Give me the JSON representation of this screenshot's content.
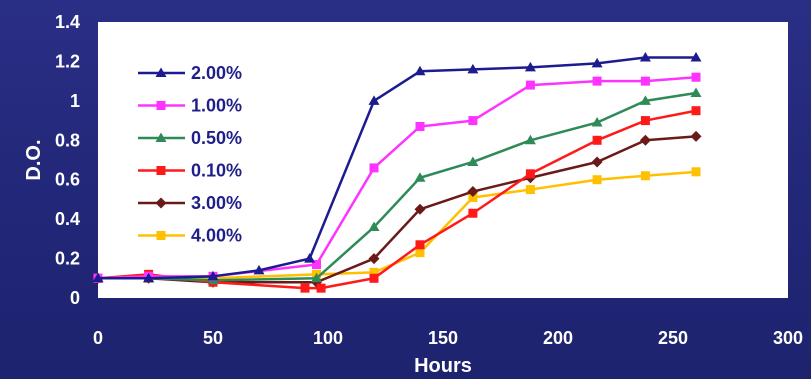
{
  "chart_data": {
    "type": "line",
    "xlabel": "Hours",
    "ylabel": "D.O.",
    "xlim": [
      0,
      300
    ],
    "ylim": [
      0,
      1.4
    ],
    "xticks": [
      0,
      50,
      100,
      150,
      200,
      250,
      300
    ],
    "yticks": [
      0,
      0.2,
      0.4,
      0.6,
      0.8,
      1,
      1.2,
      1.4
    ],
    "xtick_labels": [
      "0",
      "50",
      "100",
      "150",
      "200",
      "250",
      "300"
    ],
    "ytick_labels": [
      "0",
      "0.2",
      "0.4",
      "0.6",
      "0.8",
      "1",
      "1.2",
      "1.4"
    ],
    "grid": false,
    "legend_position": "top-left inside plot",
    "series": [
      {
        "name": "2.00%",
        "color": "#1c1c8f",
        "marker": "triangle",
        "x": [
          0,
          22,
          50,
          70,
          92,
          120,
          140,
          163,
          188,
          217,
          238,
          260
        ],
        "y": [
          0.1,
          0.1,
          0.11,
          0.14,
          0.2,
          1.0,
          1.15,
          1.16,
          1.17,
          1.19,
          1.22,
          1.22
        ]
      },
      {
        "name": "1.00%",
        "color": "#ff33ff",
        "marker": "square",
        "x": [
          0,
          22,
          50,
          95,
          120,
          140,
          163,
          188,
          217,
          238,
          260
        ],
        "y": [
          0.1,
          0.11,
          0.11,
          0.17,
          0.66,
          0.87,
          0.9,
          1.08,
          1.1,
          1.1,
          1.12
        ]
      },
      {
        "name": "0.50%",
        "color": "#2e8b57",
        "marker": "triangle",
        "x": [
          0,
          22,
          50,
          95,
          120,
          140,
          163,
          188,
          217,
          238,
          260
        ],
        "y": [
          0.1,
          0.1,
          0.09,
          0.1,
          0.36,
          0.61,
          0.69,
          0.8,
          0.89,
          1.0,
          1.04
        ]
      },
      {
        "name": "0.10%",
        "color": "#ff1a1a",
        "marker": "square",
        "x": [
          0,
          22,
          50,
          90,
          97,
          120,
          140,
          163,
          188,
          217,
          238,
          260
        ],
        "y": [
          0.1,
          0.12,
          0.08,
          0.05,
          0.05,
          0.1,
          0.27,
          0.43,
          0.63,
          0.8,
          0.9,
          0.95
        ]
      },
      {
        "name": "3.00%",
        "color": "#6b1a1a",
        "marker": "diamond",
        "x": [
          0,
          22,
          50,
          95,
          120,
          140,
          163,
          188,
          217,
          238,
          260
        ],
        "y": [
          0.1,
          0.1,
          0.08,
          0.08,
          0.2,
          0.45,
          0.54,
          0.61,
          0.69,
          0.8,
          0.82
        ]
      },
      {
        "name": "4.00%",
        "color": "#ffc000",
        "marker": "square",
        "x": [
          0,
          22,
          50,
          95,
          120,
          140,
          163,
          188,
          217,
          238,
          260
        ],
        "y": [
          0.1,
          0.1,
          0.1,
          0.12,
          0.13,
          0.23,
          0.51,
          0.55,
          0.6,
          0.62,
          0.64
        ]
      }
    ]
  }
}
